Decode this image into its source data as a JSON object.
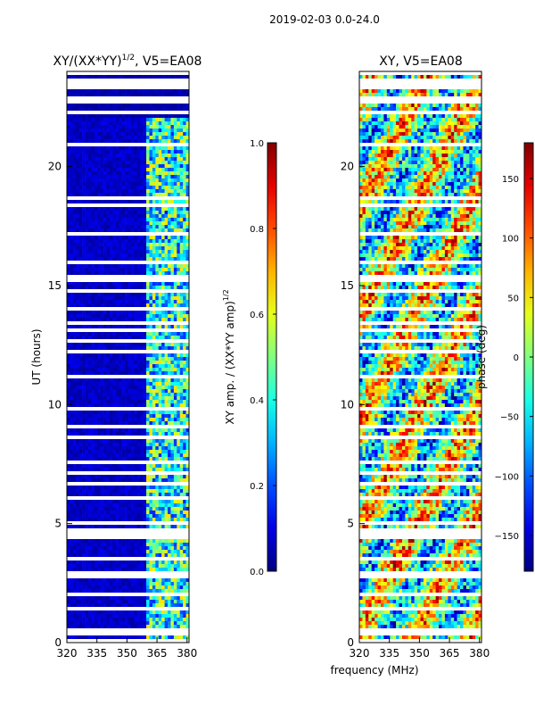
{
  "suptitle": "2019-02-03 0.0-24.0",
  "shared_xlabel": "frequency (MHz)",
  "chart_data": [
    {
      "type": "heatmap",
      "title": "XY/(XX*YY)^(1/2), V5=EA08",
      "title_main": "XY/(XX*YY)",
      "title_sup": "1/2",
      "title_tail": ", V5=EA08",
      "xlabel": "frequency (MHz)",
      "ylabel": "UT (hours)",
      "xlim": [
        320,
        381
      ],
      "ylim": [
        0,
        24
      ],
      "xticks": [
        "320",
        "335",
        "350",
        "365",
        "380"
      ],
      "yticks": [
        "0",
        "5",
        "10",
        "15",
        "20"
      ],
      "colorbar": {
        "label": "XY amp. / (XX*YY amp)^(1/2)",
        "label_main": "XY amp. / (XX*YY amp)",
        "label_sup": "1/2",
        "range": [
          0.0,
          1.0
        ],
        "ticks": [
          "0.0",
          "0.2",
          "0.4",
          "0.6",
          "0.8",
          "1.0"
        ]
      }
    },
    {
      "type": "heatmap",
      "title": "XY, V5=EA08",
      "xlabel": "frequency (MHz)",
      "ylabel": "",
      "xlim": [
        320,
        381
      ],
      "ylim": [
        0,
        24
      ],
      "xticks": [
        "320",
        "335",
        "350",
        "365",
        "380"
      ],
      "yticks": [
        "0",
        "5",
        "10",
        "15",
        "20"
      ],
      "colorbar": {
        "label": "phase (deg)",
        "range": [
          -180,
          180
        ],
        "ticks": [
          "−150",
          "−100",
          "−50",
          "0",
          "50",
          "100",
          "150"
        ]
      }
    }
  ],
  "flagged_hours": [
    0.1,
    0.45,
    1.4,
    2.0,
    2.85,
    3.5,
    4.5,
    4.75,
    5.0,
    6.1,
    6.7,
    7.1,
    7.6,
    8.6,
    9.1,
    9.8,
    11.2,
    12.2,
    12.7,
    13.1,
    13.4,
    14.0,
    14.8,
    15.3,
    16.0,
    17.2,
    18.4,
    18.7,
    20.9,
    23.9,
    23.4,
    22.8,
    22.3
  ]
}
